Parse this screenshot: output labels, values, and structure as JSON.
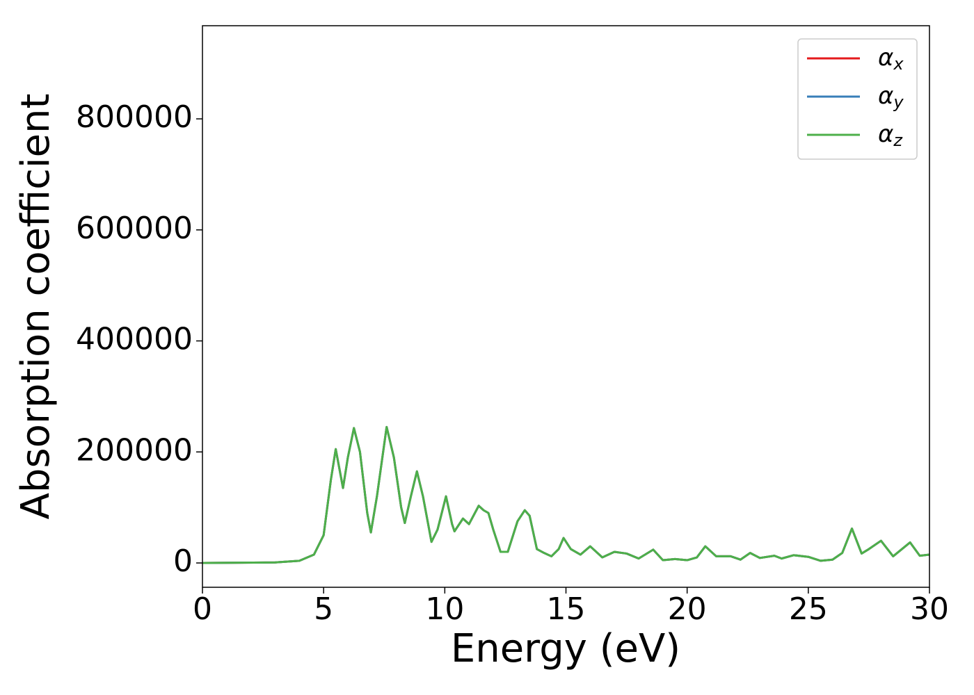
{
  "chart_data": {
    "type": "line",
    "xlabel": "Energy (eV)",
    "ylabel": "Absorption coefficient",
    "x": [
      0,
      3,
      4,
      4.6,
      5.0,
      5.3,
      5.5,
      5.8,
      6.0,
      6.25,
      6.5,
      6.8,
      6.95,
      7.2,
      7.6,
      7.9,
      8.2,
      8.35,
      8.6,
      8.85,
      9.1,
      9.45,
      9.7,
      10.05,
      10.3,
      10.4,
      10.75,
      11.0,
      11.4,
      11.6,
      11.8,
      12.0,
      12.3,
      12.6,
      13.0,
      13.3,
      13.5,
      13.8,
      14.1,
      14.4,
      14.7,
      14.9,
      15.2,
      15.6,
      16.0,
      16.5,
      17.0,
      17.5,
      18.0,
      18.6,
      19.0,
      19.5,
      20.0,
      20.4,
      20.75,
      21.2,
      21.8,
      22.2,
      22.6,
      23.0,
      23.6,
      23.9,
      24.4,
      25.0,
      25.5,
      26.0,
      26.4,
      26.8,
      27.2,
      27.5,
      28.0,
      28.5,
      29.2,
      29.6,
      30.0
    ],
    "series": [
      {
        "name": "αx",
        "color": "#e41a1c",
        "values": [
          0,
          1000,
          4000,
          15000,
          50000,
          150000,
          205000,
          135000,
          190000,
          243000,
          200000,
          90000,
          55000,
          120000,
          245000,
          190000,
          100000,
          72000,
          120000,
          165000,
          120000,
          38000,
          60000,
          120000,
          70000,
          57000,
          80000,
          70000,
          103000,
          95000,
          90000,
          60000,
          20000,
          20000,
          75000,
          95000,
          85000,
          25000,
          18000,
          12000,
          25000,
          45000,
          25000,
          15000,
          30000,
          10000,
          20000,
          17000,
          8000,
          24000,
          5000,
          7000,
          5000,
          10000,
          30000,
          12000,
          12000,
          6000,
          18000,
          9000,
          13000,
          8000,
          14000,
          11000,
          4000,
          6000,
          18000,
          62000,
          17000,
          25000,
          40000,
          12000,
          37000,
          13000,
          15000
        ]
      },
      {
        "name": "αy",
        "color": "#377eb8",
        "values": [
          0,
          1000,
          4000,
          15000,
          50000,
          150000,
          205000,
          135000,
          190000,
          243000,
          200000,
          90000,
          55000,
          120000,
          245000,
          190000,
          100000,
          72000,
          120000,
          165000,
          120000,
          38000,
          60000,
          120000,
          70000,
          57000,
          80000,
          70000,
          103000,
          95000,
          90000,
          60000,
          20000,
          20000,
          75000,
          95000,
          85000,
          25000,
          18000,
          12000,
          25000,
          45000,
          25000,
          15000,
          30000,
          10000,
          20000,
          17000,
          8000,
          24000,
          5000,
          7000,
          5000,
          10000,
          30000,
          12000,
          12000,
          6000,
          18000,
          9000,
          13000,
          8000,
          14000,
          11000,
          4000,
          6000,
          18000,
          62000,
          17000,
          25000,
          40000,
          12000,
          37000,
          13000,
          15000
        ]
      },
      {
        "name": "αz",
        "color": "#4daf4a",
        "values": [
          0,
          1000,
          4000,
          15000,
          50000,
          150000,
          205000,
          135000,
          190000,
          243000,
          200000,
          90000,
          55000,
          120000,
          245000,
          190000,
          100000,
          72000,
          120000,
          165000,
          120000,
          38000,
          60000,
          120000,
          70000,
          57000,
          80000,
          70000,
          103000,
          95000,
          90000,
          60000,
          20000,
          20000,
          75000,
          95000,
          85000,
          25000,
          18000,
          12000,
          25000,
          45000,
          25000,
          15000,
          30000,
          10000,
          20000,
          17000,
          8000,
          24000,
          5000,
          7000,
          5000,
          10000,
          30000,
          12000,
          12000,
          6000,
          18000,
          9000,
          13000,
          8000,
          14000,
          11000,
          4000,
          6000,
          18000,
          62000,
          17000,
          25000,
          40000,
          12000,
          37000,
          13000,
          15000
        ]
      }
    ],
    "xlim": [
      0,
      30
    ],
    "xticks": [
      0,
      5,
      10,
      15,
      20,
      25,
      30
    ],
    "ylim": [
      -43800,
      967800
    ],
    "yticks": [
      0,
      200000,
      400000,
      600000,
      800000
    ],
    "grid": false,
    "legend": "upper right"
  }
}
